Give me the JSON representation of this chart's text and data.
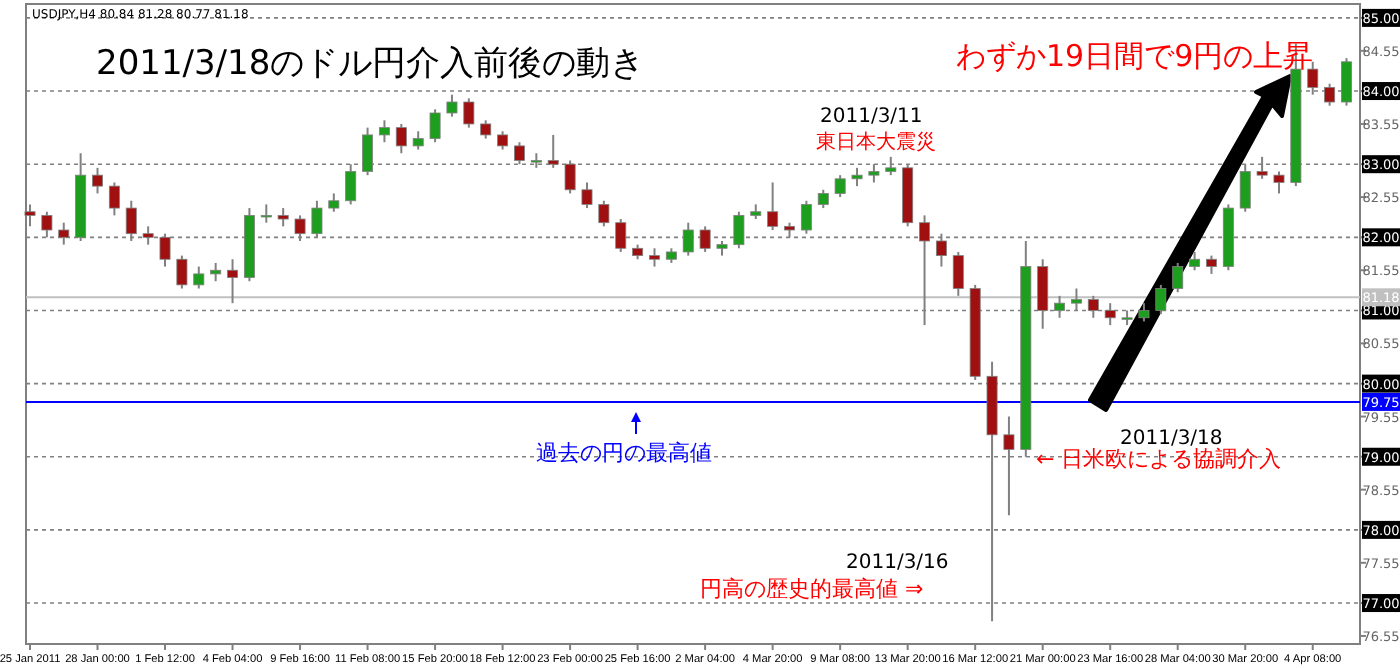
{
  "chart_data": {
    "type": "candlestick",
    "title": "2011/3/18のドル円介入前後の動き",
    "subtitle": "USDJPY,H4  80.84 81.28 80.77 81.18",
    "categories": [
      "25 Jan 2011",
      null,
      null,
      null,
      "28 Jan 00:00",
      null,
      null,
      null,
      "1 Feb 12:00",
      null,
      null,
      null,
      "4 Feb 04:00",
      null,
      null,
      null,
      "9 Feb 16:00",
      null,
      null,
      null,
      "11 Feb 08:00",
      null,
      null,
      null,
      "15 Feb 20:00",
      null,
      null,
      null,
      "18 Feb 12:00",
      null,
      null,
      null,
      "23 Feb 00:00",
      null,
      null,
      null,
      "25 Feb 16:00",
      null,
      null,
      null,
      "2 Mar 04:00",
      null,
      null,
      null,
      "4 Mar 20:00",
      null,
      null,
      null,
      "9 Mar 08:00",
      null,
      null,
      null,
      "13 Mar 20:00",
      null,
      null,
      null,
      "16 Mar 12:00",
      null,
      null,
      null,
      "21 Mar 00:00",
      null,
      null,
      null,
      "23 Mar 16:00",
      null,
      null,
      null,
      "28 Mar 04:00",
      null,
      null,
      null,
      "30 Mar 20:00",
      null,
      null,
      null,
      "4 Apr 08:00",
      null,
      null
    ],
    "ohlc": [
      [
        82.35,
        82.45,
        82.15,
        82.3
      ],
      [
        82.3,
        82.35,
        82.0,
        82.1
      ],
      [
        82.1,
        82.2,
        81.9,
        82.0
      ],
      [
        82.0,
        83.15,
        81.95,
        82.85
      ],
      [
        82.85,
        82.95,
        82.6,
        82.7
      ],
      [
        82.7,
        82.75,
        82.3,
        82.4
      ],
      [
        82.4,
        82.5,
        81.95,
        82.05
      ],
      [
        82.05,
        82.15,
        81.9,
        82.0
      ],
      [
        82.0,
        82.05,
        81.6,
        81.7
      ],
      [
        81.7,
        81.75,
        81.3,
        81.35
      ],
      [
        81.35,
        81.6,
        81.3,
        81.5
      ],
      [
        81.5,
        81.65,
        81.4,
        81.55
      ],
      [
        81.55,
        81.7,
        81.1,
        81.45
      ],
      [
        81.45,
        82.4,
        81.4,
        82.3
      ],
      [
        82.3,
        82.45,
        82.2,
        82.3
      ],
      [
        82.3,
        82.4,
        82.15,
        82.25
      ],
      [
        82.25,
        82.3,
        81.95,
        82.05
      ],
      [
        82.05,
        82.5,
        82.0,
        82.4
      ],
      [
        82.4,
        82.6,
        82.35,
        82.5
      ],
      [
        82.5,
        83.0,
        82.45,
        82.9
      ],
      [
        82.9,
        83.5,
        82.85,
        83.4
      ],
      [
        83.4,
        83.6,
        83.3,
        83.5
      ],
      [
        83.5,
        83.55,
        83.15,
        83.25
      ],
      [
        83.25,
        83.45,
        83.2,
        83.35
      ],
      [
        83.35,
        83.75,
        83.3,
        83.7
      ],
      [
        83.7,
        83.95,
        83.65,
        83.85
      ],
      [
        83.85,
        83.9,
        83.5,
        83.55
      ],
      [
        83.55,
        83.6,
        83.35,
        83.4
      ],
      [
        83.4,
        83.45,
        83.2,
        83.25
      ],
      [
        83.25,
        83.3,
        83.0,
        83.05
      ],
      [
        83.05,
        83.15,
        82.95,
        83.05
      ],
      [
        83.05,
        83.4,
        82.95,
        83.0
      ],
      [
        83.0,
        83.05,
        82.6,
        82.65
      ],
      [
        82.65,
        82.75,
        82.4,
        82.45
      ],
      [
        82.45,
        82.5,
        82.15,
        82.2
      ],
      [
        82.2,
        82.25,
        81.8,
        81.85
      ],
      [
        81.85,
        81.9,
        81.7,
        81.75
      ],
      [
        81.75,
        81.85,
        81.6,
        81.7
      ],
      [
        81.7,
        81.85,
        81.65,
        81.8
      ],
      [
        81.8,
        82.2,
        81.75,
        82.1
      ],
      [
        82.1,
        82.15,
        81.8,
        81.85
      ],
      [
        81.85,
        81.95,
        81.75,
        81.9
      ],
      [
        81.9,
        82.35,
        81.85,
        82.3
      ],
      [
        82.3,
        82.45,
        82.25,
        82.35
      ],
      [
        82.35,
        82.75,
        82.1,
        82.15
      ],
      [
        82.15,
        82.2,
        82.0,
        82.1
      ],
      [
        82.1,
        82.5,
        82.05,
        82.45
      ],
      [
        82.45,
        82.65,
        82.4,
        82.6
      ],
      [
        82.6,
        82.85,
        82.55,
        82.8
      ],
      [
        82.8,
        82.95,
        82.7,
        82.85
      ],
      [
        82.85,
        83.0,
        82.75,
        82.9
      ],
      [
        82.9,
        83.1,
        82.85,
        82.95
      ],
      [
        82.95,
        83.0,
        82.15,
        82.2
      ],
      [
        82.2,
        82.3,
        80.8,
        81.95
      ],
      [
        81.95,
        82.05,
        81.6,
        81.75
      ],
      [
        81.75,
        81.8,
        81.2,
        81.3
      ],
      [
        81.3,
        81.35,
        80.05,
        80.1
      ],
      [
        80.1,
        80.3,
        76.75,
        79.3
      ],
      [
        79.3,
        79.55,
        78.2,
        79.1
      ],
      [
        79.1,
        81.95,
        79.0,
        81.6
      ],
      [
        81.6,
        81.7,
        80.75,
        81.0
      ],
      [
        81.0,
        81.2,
        80.9,
        81.1
      ],
      [
        81.1,
        81.3,
        81.0,
        81.15
      ],
      [
        81.15,
        81.2,
        80.9,
        81.0
      ],
      [
        81.0,
        81.1,
        80.8,
        80.9
      ],
      [
        80.9,
        81.0,
        80.8,
        80.9
      ],
      [
        80.9,
        81.1,
        80.85,
        81.0
      ],
      [
        81.0,
        81.35,
        80.95,
        81.3
      ],
      [
        81.3,
        81.65,
        81.25,
        81.6
      ],
      [
        81.6,
        81.8,
        81.55,
        81.7
      ],
      [
        81.7,
        81.75,
        81.5,
        81.6
      ],
      [
        81.6,
        82.45,
        81.55,
        82.4
      ],
      [
        82.4,
        83.0,
        82.35,
        82.9
      ],
      [
        82.9,
        83.1,
        82.8,
        82.85
      ],
      [
        82.85,
        82.9,
        82.6,
        82.75
      ],
      [
        82.75,
        84.65,
        82.7,
        84.3
      ],
      [
        84.3,
        84.4,
        83.95,
        84.05
      ],
      [
        84.05,
        84.1,
        83.8,
        83.85
      ],
      [
        83.85,
        84.45,
        83.8,
        84.4
      ]
    ],
    "ylim": [
      76.44,
      85.19
    ],
    "yticks": [
      {
        "value": 85,
        "label": "85.00"
      },
      {
        "value": 84.55,
        "label": "84.55"
      },
      {
        "value": 84,
        "label": "84.00"
      },
      {
        "value": 83.55,
        "label": "83.55"
      },
      {
        "value": 83,
        "label": "83.00"
      },
      {
        "value": 82.55,
        "label": "82.55"
      },
      {
        "value": 82,
        "label": "82.00"
      },
      {
        "value": 81.55,
        "label": "81.55"
      },
      {
        "value": 81,
        "label": "81.00"
      },
      {
        "value": 80.55,
        "label": "80.55"
      },
      {
        "value": 80,
        "label": "80.00"
      },
      {
        "value": 79.55,
        "label": "79.55"
      },
      {
        "value": 79,
        "label": "79.00"
      },
      {
        "value": 78.55,
        "label": "78.55"
      },
      {
        "value": 78,
        "label": "78.00"
      },
      {
        "value": 77.55,
        "label": "77.55"
      },
      {
        "value": 77,
        "label": "77.00"
      },
      {
        "value": 76.55,
        "label": "76.55"
      }
    ],
    "grid": "y",
    "ref_lines": [
      {
        "axis": "y",
        "value": 81.18,
        "label": "81.18",
        "color": "#c0c0c0"
      },
      {
        "axis": "y",
        "value": 79.75,
        "label": "79.75",
        "color": "#0000ff"
      }
    ],
    "annotations": [
      "わずか19日間で9円の上昇",
      "2011/3/11",
      "東日本大震災",
      "過去の円の最高値",
      "2011/3/18",
      "← 日米欧による協調介入",
      "2011/3/16",
      "円高の歴史的最高値 ⇒"
    ]
  }
}
